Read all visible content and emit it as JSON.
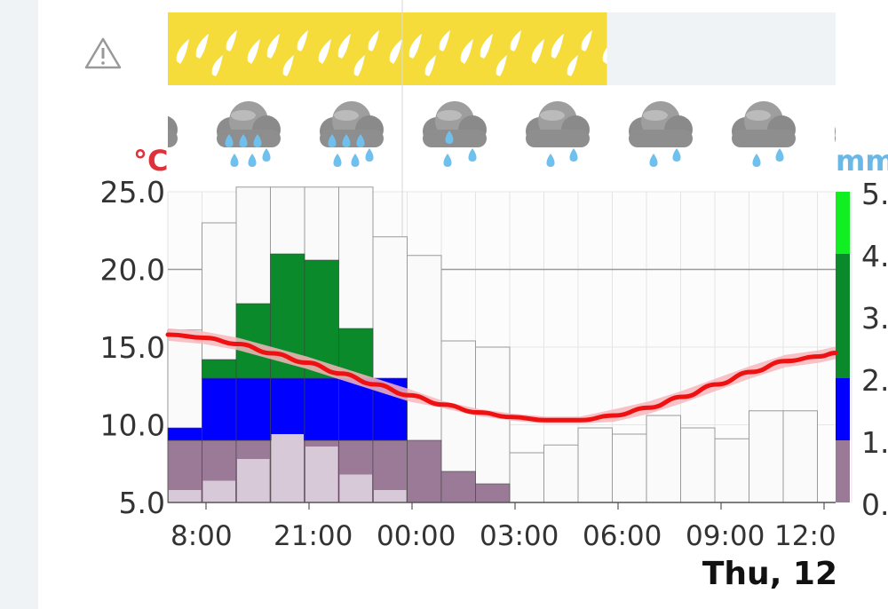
{
  "chart_data": {
    "type": "bar",
    "temperature_unit": "°C",
    "precipitation_unit": "mm",
    "y_ticks": [
      "25.0",
      "20.0",
      "15.0",
      "10.0",
      "5.0"
    ],
    "ylim_temperature": [
      5,
      25
    ],
    "precip_ticks": [
      "5.",
      "4.",
      "3.",
      "2.",
      "1.",
      "0."
    ],
    "ylim_precipitation": [
      0,
      5
    ],
    "x_ticks": [
      "8:00",
      "21:00",
      "00:00",
      "03:00",
      "06:00",
      "09:00",
      "12:0"
    ],
    "date_label": "Thu, 12",
    "series": [
      {
        "name": "temperature",
        "values": [
          15.8,
          15.6,
          15.2,
          14.6,
          14.0,
          13.3,
          12.6,
          11.9,
          11.3,
          10.8,
          10.5,
          10.3,
          10.3,
          10.6,
          11.1,
          11.8,
          12.6,
          13.4,
          14.1,
          14.4
        ]
      },
      {
        "name": "precipitation",
        "values": [
          1.2,
          2.3,
          3.2,
          4.0,
          3.9,
          2.8,
          2.0,
          1.0,
          0.5,
          0.3,
          0,
          0,
          0,
          0,
          0,
          0,
          0,
          0,
          0,
          0
        ]
      },
      {
        "name": "precipitation-light",
        "values": [
          0.2,
          0.35,
          0.7,
          1.1,
          0.9,
          0.45,
          0.2,
          0,
          0,
          0,
          0,
          0,
          0,
          0,
          0,
          0,
          0,
          0,
          0,
          0
        ]
      },
      {
        "name": "max-temperature-outline",
        "values": [
          16.1,
          23.0,
          25.3,
          25.3,
          25.3,
          25.3,
          22.1,
          20.9,
          15.4,
          15.0,
          8.2,
          8.7,
          9.8,
          9.4,
          10.6,
          9.8,
          9.1,
          10.9,
          10.9,
          0
        ]
      }
    ],
    "weather_icons": [
      "cloud-rain-icon",
      "cloud-heavy-rain-icon",
      "cloud-heavy-rain-icon",
      "cloud-moderate-rain-icon",
      "cloud-light-rain-icon",
      "cloud-light-rain-icon",
      "cloud-light-rain-icon",
      "cloud-icon"
    ],
    "warning_band_hours": 13,
    "grid": true,
    "colors": {
      "temperature": "#ee1111",
      "temperature_band": "#f7b6bc",
      "warning": "#f5dc3a",
      "rain_light": "#d8c9d8",
      "rain_low": "#9a7a96",
      "rain_mid": "#0000ff",
      "rain_high": "#0a8a2a",
      "rain_top": "#11ee22"
    }
  }
}
